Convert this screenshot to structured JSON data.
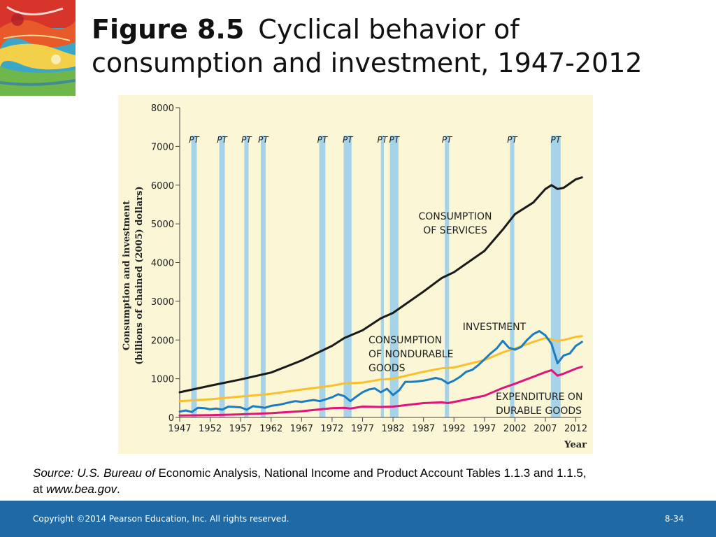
{
  "title": {
    "figure": "Figure 8.5",
    "text_line1": "Cyclical behavior of",
    "text_line2": "consumption and investment, 1947-2012"
  },
  "source": {
    "italic_lead": "Source: U.S. Bureau of",
    "text": " Economic Analysis, National Income and Product Account Tables 1.1.3 and 1.1.5,",
    "line2_prefix": "at ",
    "url": "www.bea.gov",
    "line2_suffix": "."
  },
  "footer": {
    "copyright": "Copyright ©2014 Pearson Education, Inc. All rights reserved.",
    "page": "8-34"
  },
  "colors": {
    "chart_bg": "#fbf6d5",
    "recession_band": "#a7d3e8",
    "services": "#1a1a1a",
    "investment": "#1c7cc0",
    "nondurables": "#f9bf2c",
    "durables": "#e0147a",
    "footer_bg": "#1f6aa5"
  },
  "chart_data": {
    "type": "line",
    "ylabel_line1": "Consumption and investment",
    "ylabel_line2": "(billions of chained (2005) dollars)",
    "xlabel": "Year",
    "xlim": [
      1947,
      2014
    ],
    "ylim": [
      0,
      8000
    ],
    "x_ticks": [
      1947,
      1952,
      1957,
      1962,
      1967,
      1972,
      1977,
      1982,
      1987,
      1992,
      1997,
      2002,
      2007,
      2012
    ],
    "y_ticks": [
      0,
      1000,
      2000,
      3000,
      4000,
      5000,
      6000,
      7000,
      8000
    ],
    "peak_trough_label": "PT",
    "recessions": [
      [
        1948.9,
        1949.8
      ],
      [
        1953.5,
        1954.4
      ],
      [
        1957.6,
        1958.3
      ],
      [
        1960.3,
        1961.1
      ],
      [
        1969.9,
        1970.9
      ],
      [
        1973.9,
        1975.2
      ],
      [
        1980.0,
        1980.5
      ],
      [
        1981.5,
        1982.9
      ],
      [
        1990.5,
        1991.2
      ],
      [
        2001.2,
        2001.9
      ],
      [
        2007.9,
        2009.5
      ]
    ],
    "series": [
      {
        "name": "CONSUMPTION OF SERVICES",
        "label_lines": [
          "CONSUMPTION",
          "OF SERVICES"
        ],
        "color_key": "services",
        "points": [
          [
            1947,
            650
          ],
          [
            1952,
            820
          ],
          [
            1957,
            980
          ],
          [
            1962,
            1160
          ],
          [
            1967,
            1470
          ],
          [
            1972,
            1850
          ],
          [
            1974,
            2050
          ],
          [
            1977,
            2250
          ],
          [
            1980,
            2560
          ],
          [
            1982,
            2700
          ],
          [
            1987,
            3250
          ],
          [
            1990,
            3600
          ],
          [
            1992,
            3750
          ],
          [
            1997,
            4300
          ],
          [
            2000,
            4850
          ],
          [
            2002,
            5250
          ],
          [
            2005,
            5550
          ],
          [
            2007,
            5900
          ],
          [
            2008,
            6000
          ],
          [
            2009,
            5900
          ],
          [
            2010,
            5930
          ],
          [
            2012,
            6150
          ],
          [
            2013,
            6200
          ]
        ]
      },
      {
        "name": "INVESTMENT",
        "label_lines": [
          "INVESTMENT"
        ],
        "color_key": "investment",
        "points": [
          [
            1947,
            150
          ],
          [
            1948,
            180
          ],
          [
            1949,
            140
          ],
          [
            1950,
            250
          ],
          [
            1951,
            240
          ],
          [
            1952,
            210
          ],
          [
            1953,
            230
          ],
          [
            1954,
            200
          ],
          [
            1955,
            280
          ],
          [
            1956,
            270
          ],
          [
            1957,
            260
          ],
          [
            1958,
            200
          ],
          [
            1959,
            290
          ],
          [
            1960,
            270
          ],
          [
            1961,
            250
          ],
          [
            1962,
            300
          ],
          [
            1963,
            320
          ],
          [
            1964,
            350
          ],
          [
            1965,
            390
          ],
          [
            1966,
            420
          ],
          [
            1967,
            400
          ],
          [
            1968,
            430
          ],
          [
            1969,
            450
          ],
          [
            1970,
            420
          ],
          [
            1971,
            470
          ],
          [
            1972,
            520
          ],
          [
            1973,
            600
          ],
          [
            1974,
            550
          ],
          [
            1975,
            420
          ],
          [
            1976,
            540
          ],
          [
            1977,
            650
          ],
          [
            1978,
            720
          ],
          [
            1979,
            750
          ],
          [
            1980,
            650
          ],
          [
            1981,
            740
          ],
          [
            1982,
            580
          ],
          [
            1983,
            700
          ],
          [
            1984,
            920
          ],
          [
            1985,
            920
          ],
          [
            1986,
            930
          ],
          [
            1987,
            950
          ],
          [
            1988,
            980
          ],
          [
            1989,
            1020
          ],
          [
            1990,
            980
          ],
          [
            1991,
            880
          ],
          [
            1992,
            950
          ],
          [
            1993,
            1050
          ],
          [
            1994,
            1180
          ],
          [
            1995,
            1230
          ],
          [
            1996,
            1350
          ],
          [
            1997,
            1500
          ],
          [
            1998,
            1650
          ],
          [
            1999,
            1780
          ],
          [
            2000,
            1980
          ],
          [
            2001,
            1800
          ],
          [
            2002,
            1750
          ],
          [
            2003,
            1820
          ],
          [
            2004,
            2000
          ],
          [
            2005,
            2150
          ],
          [
            2006,
            2230
          ],
          [
            2007,
            2120
          ],
          [
            2008,
            1900
          ],
          [
            2009,
            1400
          ],
          [
            2010,
            1600
          ],
          [
            2011,
            1650
          ],
          [
            2012,
            1850
          ],
          [
            2013,
            1950
          ]
        ]
      },
      {
        "name": "CONSUMPTION OF NONDURABLE GOODS",
        "label_lines": [
          "CONSUMPTION",
          "OF NONDURABLE",
          "GOODS"
        ],
        "color_key": "nondurables",
        "points": [
          [
            1947,
            420
          ],
          [
            1952,
            470
          ],
          [
            1957,
            540
          ],
          [
            1962,
            610
          ],
          [
            1967,
            720
          ],
          [
            1972,
            820
          ],
          [
            1974,
            880
          ],
          [
            1977,
            900
          ],
          [
            1980,
            980
          ],
          [
            1982,
            1000
          ],
          [
            1987,
            1180
          ],
          [
            1990,
            1270
          ],
          [
            1992,
            1290
          ],
          [
            1997,
            1480
          ],
          [
            2000,
            1680
          ],
          [
            2002,
            1780
          ],
          [
            2005,
            1950
          ],
          [
            2007,
            2050
          ],
          [
            2009,
            1980
          ],
          [
            2010,
            2000
          ],
          [
            2012,
            2080
          ],
          [
            2013,
            2100
          ]
        ]
      },
      {
        "name": "EXPENDITURE ON DURABLE GOODS",
        "label_lines": [
          "EXPENDITURE ON",
          "DURABLE GOODS"
        ],
        "color_key": "durables",
        "points": [
          [
            1947,
            50
          ],
          [
            1952,
            60
          ],
          [
            1957,
            80
          ],
          [
            1962,
            110
          ],
          [
            1967,
            160
          ],
          [
            1972,
            240
          ],
          [
            1974,
            250
          ],
          [
            1975,
            230
          ],
          [
            1977,
            280
          ],
          [
            1980,
            270
          ],
          [
            1982,
            280
          ],
          [
            1987,
            370
          ],
          [
            1990,
            390
          ],
          [
            1991,
            370
          ],
          [
            1992,
            400
          ],
          [
            1997,
            560
          ],
          [
            2000,
            760
          ],
          [
            2002,
            870
          ],
          [
            2005,
            1050
          ],
          [
            2007,
            1170
          ],
          [
            2008,
            1220
          ],
          [
            2009,
            1080
          ],
          [
            2010,
            1130
          ],
          [
            2012,
            1260
          ],
          [
            2013,
            1310
          ]
        ]
      }
    ]
  }
}
